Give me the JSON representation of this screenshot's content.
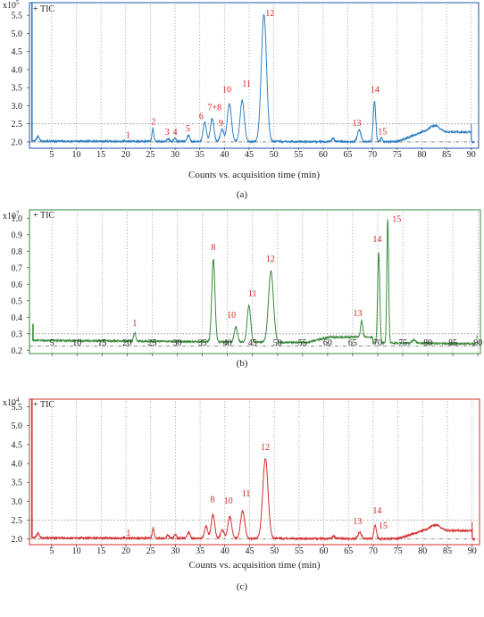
{
  "figure": {
    "xlabel": "Counts vs. acquisition time (min)"
  },
  "chart_data": [
    {
      "type": "line",
      "panel_label": "(a)",
      "legend": "+ TIC",
      "exponent_label": "x10",
      "exponent_power": "5",
      "color": "#2f7fc1",
      "frame_color": "#1f56a8",
      "xlabel": "Counts vs. acquisition time (min)",
      "xlim": [
        0.5,
        91.5
      ],
      "ylim": [
        1.85,
        5.85
      ],
      "x_ticks": [
        5,
        10,
        15,
        20,
        25,
        30,
        35,
        40,
        45,
        50,
        55,
        60,
        65,
        70,
        75,
        80,
        85,
        90
      ],
      "y_ticks": [
        2.0,
        2.5,
        3.0,
        3.5,
        4.0,
        4.5,
        5.0,
        5.5
      ],
      "y_tick_labels": [
        "2.0",
        "2.5",
        "3.0",
        "3.5",
        "4.0",
        "4.5",
        "5.0",
        "5.5"
      ],
      "ref_lines": [
        2.5,
        2.0
      ],
      "baseline_early": 2.02,
      "baseline_late": 2.0,
      "start_spike": {
        "x": 1.0,
        "y": 5.85
      },
      "peaks": [
        {
          "x": 2.2,
          "y": 2.15,
          "w": 0.35
        },
        {
          "x": 25.5,
          "y": 2.38,
          "w": 0.25
        },
        {
          "x": 28.6,
          "y": 2.1,
          "w": 0.3
        },
        {
          "x": 30.0,
          "y": 2.12,
          "w": 0.3
        },
        {
          "x": 32.7,
          "y": 2.2,
          "w": 0.35
        },
        {
          "x": 36.0,
          "y": 2.55,
          "w": 0.45
        },
        {
          "x": 37.5,
          "y": 2.65,
          "w": 0.5
        },
        {
          "x": 39.5,
          "y": 2.35,
          "w": 0.5
        },
        {
          "x": 41.0,
          "y": 3.05,
          "w": 0.6
        },
        {
          "x": 43.6,
          "y": 3.15,
          "w": 0.6
        },
        {
          "x": 48.0,
          "y": 5.55,
          "w": 0.75
        },
        {
          "x": 62.0,
          "y": 2.12,
          "w": 0.3
        },
        {
          "x": 67.3,
          "y": 2.35,
          "w": 0.5
        },
        {
          "x": 70.4,
          "y": 3.15,
          "w": 0.35
        },
        {
          "x": 71.8,
          "y": 2.12,
          "w": 0.3
        },
        {
          "x": 82.5,
          "y": 2.2,
          "w": 1.5
        }
      ],
      "late_hump": {
        "start": 75,
        "end": 90,
        "y": 2.27
      },
      "end_spike": {
        "x": 90.0,
        "y": 2.5
      },
      "peak_labels": [
        {
          "text": "1",
          "x": 20.5,
          "y": 2.04
        },
        {
          "text": "2",
          "x": 25.6,
          "y": 2.4
        },
        {
          "text": "3",
          "x": 28.4,
          "y": 2.12
        },
        {
          "text": "4",
          "x": 30.0,
          "y": 2.12
        },
        {
          "text": "5",
          "x": 32.6,
          "y": 2.22
        },
        {
          "text": "6",
          "x": 35.3,
          "y": 2.55
        },
        {
          "text": "7+8",
          "x": 38.0,
          "y": 2.8
        },
        {
          "text": "9",
          "x": 39.3,
          "y": 2.37
        },
        {
          "text": "10",
          "x": 40.5,
          "y": 3.3
        },
        {
          "text": "11",
          "x": 44.5,
          "y": 3.45
        },
        {
          "text": "12",
          "x": 49.2,
          "y": 5.4
        },
        {
          "text": "13",
          "x": 66.8,
          "y": 2.37
        },
        {
          "text": "14",
          "x": 70.5,
          "y": 3.3
        },
        {
          "text": "15",
          "x": 72.0,
          "y": 2.14
        }
      ]
    },
    {
      "type": "line",
      "panel_label": "(b)",
      "legend": "+ TIC",
      "exponent_label": "x10",
      "exponent_power": "7",
      "color": "#3a8a3a",
      "frame_color": "#3a8a3a",
      "xlabel": "",
      "xlim": [
        0.5,
        90.5
      ],
      "ylim": [
        0.18,
        1.05
      ],
      "x_ticks": [
        5,
        10,
        15,
        20,
        25,
        30,
        35,
        40,
        45,
        50,
        55,
        60,
        65,
        70,
        75,
        80,
        85,
        90
      ],
      "y_ticks": [
        0.2,
        0.3,
        0.4,
        0.5,
        0.6,
        0.7,
        0.8,
        0.9,
        1.0
      ],
      "y_tick_labels": [
        "0.2",
        "0.3",
        "0.4",
        "0.5",
        "0.6",
        "0.7",
        "0.8",
        "0.9",
        "1.0"
      ],
      "ref_lines": [
        0.3,
        0.225
      ],
      "baseline_early": 0.26,
      "baseline_late": 0.24,
      "start_spike": {
        "x": 1.2,
        "y": 0.36
      },
      "peaks": [
        {
          "x": 21.5,
          "y": 0.31,
          "w": 0.3
        },
        {
          "x": 37.2,
          "y": 0.76,
          "w": 0.45
        },
        {
          "x": 41.7,
          "y": 0.35,
          "w": 0.45
        },
        {
          "x": 44.3,
          "y": 0.48,
          "w": 0.5
        },
        {
          "x": 48.7,
          "y": 0.69,
          "w": 0.7
        },
        {
          "x": 66.8,
          "y": 0.36,
          "w": 0.3
        },
        {
          "x": 70.2,
          "y": 0.81,
          "w": 0.3
        },
        {
          "x": 72.0,
          "y": 1.01,
          "w": 0.25
        },
        {
          "x": 77.2,
          "y": 0.28,
          "w": 0.5
        }
      ],
      "late_hump": {
        "start": 56,
        "end": 69,
        "y": 0.28
      },
      "end_spike": {
        "x": 89.8,
        "y": 0.27
      },
      "peak_labels": [
        {
          "text": "1",
          "x": 21.5,
          "y": 0.33
        },
        {
          "text": "8",
          "x": 37.2,
          "y": 0.79
        },
        {
          "text": "10",
          "x": 40.8,
          "y": 0.38
        },
        {
          "text": "11",
          "x": 45.0,
          "y": 0.51
        },
        {
          "text": "12",
          "x": 48.6,
          "y": 0.72
        },
        {
          "text": "13",
          "x": 66.0,
          "y": 0.39
        },
        {
          "text": "14",
          "x": 69.9,
          "y": 0.84
        },
        {
          "text": "15",
          "x": 73.8,
          "y": 0.96
        }
      ]
    },
    {
      "type": "line",
      "panel_label": "(c)",
      "legend": "+ TIC",
      "exponent_label": "x10",
      "exponent_power": "4",
      "color": "#d62f2f",
      "frame_color": "#d62f2f",
      "xlabel": "Counts vs. acquisition time (min)",
      "xlim": [
        0.5,
        91.5
      ],
      "ylim": [
        1.85,
        5.7
      ],
      "x_ticks": [
        5,
        10,
        15,
        20,
        25,
        30,
        35,
        40,
        45,
        50,
        55,
        60,
        65,
        70,
        75,
        80,
        85,
        90
      ],
      "y_ticks": [
        2.0,
        2.5,
        3.0,
        3.5,
        4.0,
        4.5,
        5.0,
        5.5
      ],
      "y_tick_labels": [
        "2.0",
        "2.5",
        "3.0",
        "3.5",
        "4.0",
        "4.5",
        "5.0",
        "5.5"
      ],
      "ref_lines": [
        2.5,
        2.0
      ],
      "baseline_early": 2.03,
      "baseline_late": 2.0,
      "start_spike": {
        "x": 1.0,
        "y": 5.7
      },
      "peaks": [
        {
          "x": 2.2,
          "y": 2.15,
          "w": 0.35
        },
        {
          "x": 25.5,
          "y": 2.3,
          "w": 0.25
        },
        {
          "x": 28.5,
          "y": 2.12,
          "w": 0.3
        },
        {
          "x": 30.0,
          "y": 2.14,
          "w": 0.3
        },
        {
          "x": 32.7,
          "y": 2.2,
          "w": 0.35
        },
        {
          "x": 36.2,
          "y": 2.35,
          "w": 0.45
        },
        {
          "x": 37.6,
          "y": 2.65,
          "w": 0.5
        },
        {
          "x": 39.5,
          "y": 2.25,
          "w": 0.5
        },
        {
          "x": 41.0,
          "y": 2.6,
          "w": 0.55
        },
        {
          "x": 43.6,
          "y": 2.75,
          "w": 0.6
        },
        {
          "x": 48.2,
          "y": 4.15,
          "w": 0.75
        },
        {
          "x": 62.0,
          "y": 2.1,
          "w": 0.3
        },
        {
          "x": 67.3,
          "y": 2.2,
          "w": 0.5
        },
        {
          "x": 70.4,
          "y": 2.4,
          "w": 0.35
        },
        {
          "x": 82.5,
          "y": 2.18,
          "w": 1.5
        }
      ],
      "late_hump": {
        "start": 75,
        "end": 90,
        "y": 2.22
      },
      "end_spike": {
        "x": 90.0,
        "y": 2.45
      },
      "peak_labels": [
        {
          "text": "1",
          "x": 20.5,
          "y": 2.02
        },
        {
          "text": "8",
          "x": 37.5,
          "y": 2.9
        },
        {
          "text": "10",
          "x": 40.7,
          "y": 2.87
        },
        {
          "text": "11",
          "x": 44.3,
          "y": 3.05
        },
        {
          "text": "12",
          "x": 48.2,
          "y": 4.28
        },
        {
          "text": "13",
          "x": 66.8,
          "y": 2.32
        },
        {
          "text": "14",
          "x": 70.8,
          "y": 2.6
        },
        {
          "text": "15",
          "x": 72.0,
          "y": 2.2
        }
      ]
    }
  ]
}
